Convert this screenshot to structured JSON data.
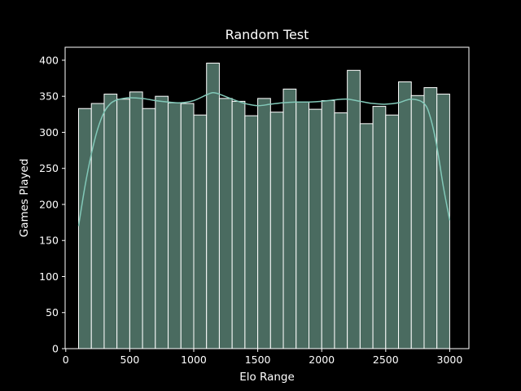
{
  "chart_data": {
    "type": "bar",
    "title": "Random Test",
    "xlabel": "Elo Range",
    "ylabel": "Games Played",
    "xlim": [
      -5,
      3150
    ],
    "ylim": [
      0,
      418
    ],
    "xticks": [
      0,
      500,
      1000,
      1500,
      2000,
      2500,
      3000
    ],
    "yticks": [
      0,
      50,
      100,
      150,
      200,
      250,
      300,
      350,
      400
    ],
    "grid": false,
    "bin_edges": [
      100,
      200,
      300,
      400,
      500,
      600,
      700,
      800,
      900,
      1000,
      1100,
      1200,
      1300,
      1400,
      1500,
      1600,
      1700,
      1800,
      1900,
      2000,
      2100,
      2200,
      2300,
      2400,
      2500,
      2600,
      2700,
      2800,
      2900,
      3000
    ],
    "values": [
      333,
      340,
      353,
      346,
      356,
      333,
      350,
      341,
      340,
      324,
      396,
      347,
      343,
      323,
      347,
      328,
      360,
      342,
      332,
      344,
      327,
      386,
      312,
      336,
      324,
      370,
      351,
      362,
      353
    ],
    "kde": {
      "x": [
        100,
        150,
        200,
        250,
        300,
        350,
        400,
        450,
        500,
        600,
        700,
        800,
        900,
        1000,
        1100,
        1150,
        1200,
        1300,
        1400,
        1500,
        1600,
        1700,
        1800,
        1900,
        2000,
        2100,
        2200,
        2300,
        2400,
        2500,
        2600,
        2700,
        2800,
        2850,
        2900,
        2950,
        3000
      ],
      "y": [
        170,
        225,
        270,
        305,
        328,
        340,
        345,
        347,
        348,
        347,
        344,
        342,
        341,
        344,
        352,
        355,
        353,
        346,
        340,
        337,
        339,
        341,
        342,
        342,
        343,
        345,
        346,
        343,
        340,
        339,
        341,
        346,
        340,
        320,
        280,
        225,
        178
      ]
    },
    "colors": {
      "bar_fill": "#4a6b60",
      "bar_edge": "#ffffff",
      "kde_line": "#82c8b8",
      "axes": "#ffffff",
      "background": "#000000"
    }
  }
}
